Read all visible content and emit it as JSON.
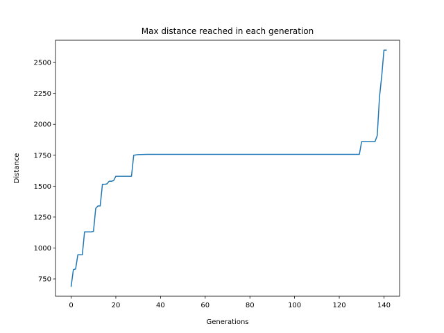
{
  "chart_data": {
    "type": "line",
    "title": "Max distance reached in each generation",
    "xlabel": "Generations",
    "ylabel": "Distance",
    "xlim": [
      -7,
      147
    ],
    "ylim": [
      610,
      2680
    ],
    "xticks": [
      0,
      20,
      40,
      60,
      80,
      100,
      120,
      140
    ],
    "yticks": [
      750,
      1000,
      1250,
      1500,
      1750,
      2000,
      2250,
      2500
    ],
    "grid": false,
    "line_color": "#1f77b4",
    "series": [
      {
        "x": [
          0,
          1,
          2,
          3,
          4,
          5,
          6,
          7,
          8,
          9,
          10,
          11,
          12,
          13,
          14,
          15,
          16,
          17,
          18,
          19,
          20,
          27,
          28,
          30,
          34,
          40,
          60,
          80,
          100,
          120,
          129,
          130,
          131,
          135,
          136,
          137,
          138,
          139,
          140,
          141
        ],
        "y": [
          690,
          825,
          830,
          945,
          945,
          945,
          1130,
          1130,
          1130,
          1130,
          1135,
          1320,
          1340,
          1340,
          1515,
          1515,
          1518,
          1540,
          1540,
          1545,
          1580,
          1580,
          1750,
          1755,
          1757,
          1757,
          1757,
          1757,
          1757,
          1757,
          1757,
          1860,
          1860,
          1860,
          1860,
          1910,
          2220,
          2390,
          2600,
          2600
        ]
      }
    ]
  }
}
